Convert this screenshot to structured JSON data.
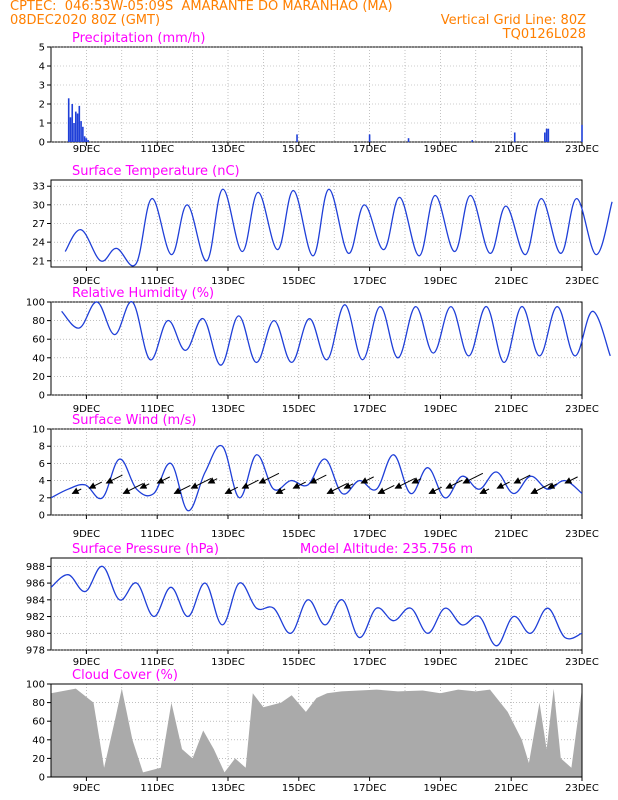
{
  "header": {
    "line1_left": "CPTEC:  046:53W-05:09S  AMARANTE DO MARANHAO (MA)",
    "line2_left": "08DEC2020 80Z (GMT)",
    "line2_right": "Vertical Grid Line: 80Z",
    "line3_right": "TQ0126L028"
  },
  "colors": {
    "header": "#ff7f00",
    "title": "#ff00ff",
    "line": "#1f3fd8",
    "cloud": "#aaaaaa",
    "arrow": "#000000"
  },
  "x_ticks": [
    "9DEC",
    "11DEC",
    "13DEC",
    "15DEC",
    "17DEC",
    "19DEC",
    "21DEC",
    "23DEC"
  ],
  "chart_data": [
    {
      "type": "bar",
      "title": "Precipitation (mm/h)",
      "ylim": [
        0,
        5
      ],
      "yticks": [
        "0",
        "1",
        "2",
        "3",
        "4",
        "5"
      ],
      "bars": [
        [
          8.5,
          2.3
        ],
        [
          8.55,
          1.3
        ],
        [
          8.6,
          2.0
        ],
        [
          8.65,
          1.0
        ],
        [
          8.7,
          1.6
        ],
        [
          8.75,
          1.5
        ],
        [
          8.8,
          1.9
        ],
        [
          8.85,
          1.1
        ],
        [
          8.9,
          0.8
        ],
        [
          8.95,
          0.3
        ],
        [
          9.0,
          0.2
        ],
        [
          9.05,
          0.1
        ],
        [
          14.95,
          0.4
        ],
        [
          17.0,
          0.4
        ],
        [
          18.1,
          0.2
        ],
        [
          19.9,
          0.1
        ],
        [
          21.1,
          0.5
        ],
        [
          21.95,
          0.5
        ],
        [
          22.0,
          0.7
        ],
        [
          22.05,
          0.7
        ],
        [
          23.0,
          0.9
        ]
      ]
    },
    {
      "type": "line",
      "title": "Surface Temperature (nC)",
      "ylim": [
        20,
        34
      ],
      "yticks": [
        "21",
        "24",
        "27",
        "30",
        "33"
      ],
      "tmin": [
        22.5,
        21.0,
        20.5,
        22.0,
        21.0,
        22.5,
        22.8,
        21.8,
        22.2,
        22.8,
        21.8,
        22.5,
        22.2,
        22.0,
        22.2,
        22.0
      ],
      "tmax": [
        26.0,
        23.0,
        31.0,
        30.0,
        32.5,
        32.0,
        32.3,
        32.5,
        30.0,
        31.2,
        31.5,
        31.5,
        29.8,
        31.0,
        31.0,
        30.5
      ]
    },
    {
      "type": "line",
      "title": "Relative Humidity (%)",
      "ylim": [
        0,
        100
      ],
      "yticks": [
        "0",
        "20",
        "40",
        "60",
        "80",
        "100"
      ],
      "hmax": [
        90,
        100,
        100,
        80,
        82,
        85,
        80,
        82,
        97,
        95,
        95,
        95,
        95,
        95,
        95,
        90
      ],
      "hmin": [
        72,
        65,
        38,
        48,
        32,
        35,
        35,
        38,
        38,
        40,
        45,
        42,
        35,
        42,
        42,
        42
      ]
    },
    {
      "type": "line",
      "title": "Surface Wind (m/s)",
      "ylim": [
        0,
        10
      ],
      "yticks": [
        "0",
        "2",
        "4",
        "6",
        "8",
        "10"
      ],
      "speed": [
        2.0,
        3.0,
        3.5,
        2.0,
        6.5,
        3.0,
        2.5,
        6.0,
        0.5,
        5.0,
        8.0,
        2.0,
        7.0,
        3.0,
        4.0,
        3.5,
        6.5,
        2.5,
        4.0,
        3.0,
        7.0,
        2.5,
        5.5,
        2.0,
        4.5,
        3.0,
        5.0,
        2.5,
        4.5,
        3.0,
        4.0,
        2.5
      ]
    },
    {
      "type": "line",
      "title": "Surface Pressure (hPa)",
      "annotation": "Model Altitude: 235.756 m",
      "ylim": [
        978,
        989
      ],
      "yticks": [
        "978",
        "980",
        "982",
        "984",
        "986",
        "988"
      ],
      "pressure": [
        985.5,
        987.0,
        985.0,
        988.0,
        984.0,
        986.0,
        982.0,
        985.5,
        982.0,
        986.0,
        981.0,
        986.0,
        983.0,
        983.0,
        980.0,
        984.0,
        981.0,
        984.0,
        979.5,
        983.0,
        981.5,
        983.0,
        980.0,
        983.0,
        981.0,
        982.0,
        978.5,
        982.0,
        980.0,
        983.0,
        979.5,
        980.0
      ]
    },
    {
      "type": "area",
      "title": "Cloud Cover (%)",
      "ylim": [
        0,
        100
      ],
      "yticks": [
        "0",
        "20",
        "40",
        "60",
        "80",
        "100"
      ],
      "cover": [
        [
          8.0,
          90
        ],
        [
          8.7,
          95
        ],
        [
          9.2,
          80
        ],
        [
          9.5,
          10
        ],
        [
          9.8,
          60
        ],
        [
          10.0,
          95
        ],
        [
          10.3,
          40
        ],
        [
          10.6,
          5
        ],
        [
          11.1,
          10
        ],
        [
          11.4,
          80
        ],
        [
          11.7,
          30
        ],
        [
          12.0,
          20
        ],
        [
          12.3,
          50
        ],
        [
          12.6,
          30
        ],
        [
          12.9,
          5
        ],
        [
          13.2,
          20
        ],
        [
          13.5,
          10
        ],
        [
          13.7,
          90
        ],
        [
          14.0,
          75
        ],
        [
          14.5,
          80
        ],
        [
          14.8,
          88
        ],
        [
          15.2,
          70
        ],
        [
          15.5,
          85
        ],
        [
          15.8,
          90
        ],
        [
          16.2,
          92
        ],
        [
          16.7,
          93
        ],
        [
          17.2,
          94
        ],
        [
          17.8,
          92
        ],
        [
          18.5,
          93
        ],
        [
          19.0,
          90
        ],
        [
          19.5,
          94
        ],
        [
          20.0,
          92
        ],
        [
          20.4,
          94
        ],
        [
          20.9,
          70
        ],
        [
          21.3,
          40
        ],
        [
          21.5,
          15
        ],
        [
          21.8,
          80
        ],
        [
          22.0,
          30
        ],
        [
          22.2,
          95
        ],
        [
          22.4,
          20
        ],
        [
          22.7,
          10
        ],
        [
          23.0,
          95
        ]
      ]
    }
  ]
}
